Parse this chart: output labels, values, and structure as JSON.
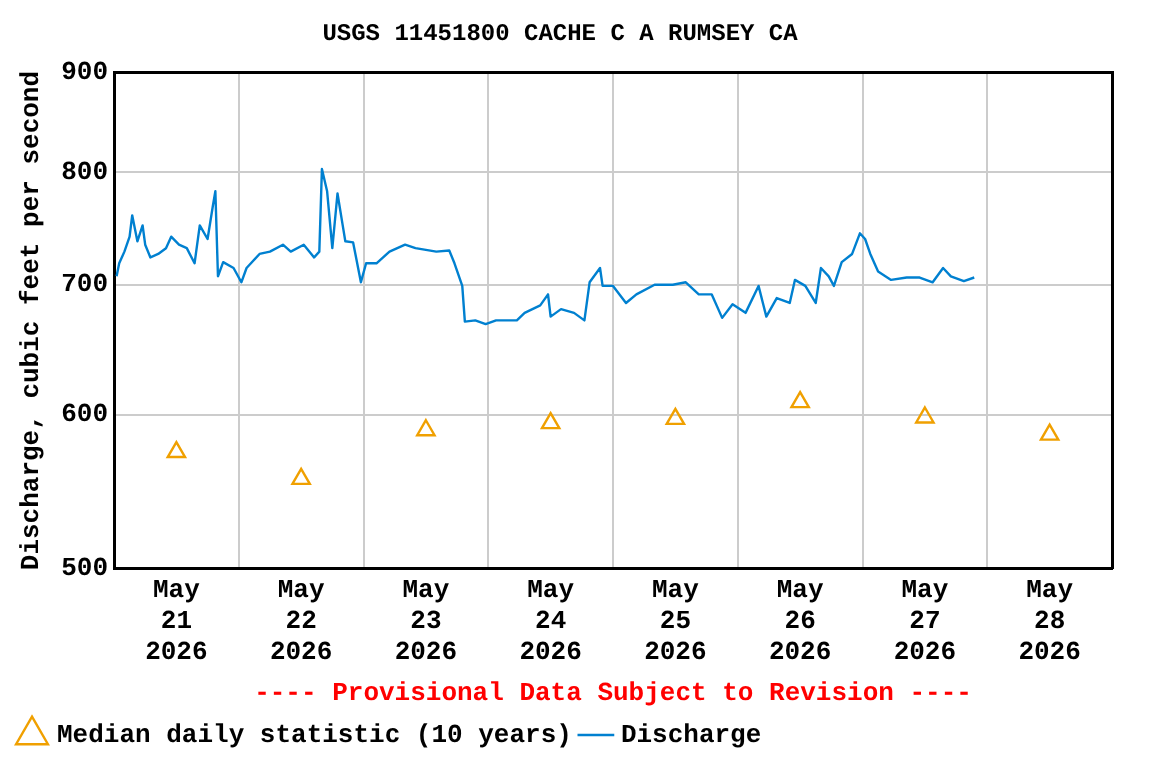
{
  "chart_data": {
    "type": "line",
    "title": "USGS 11451800 CACHE C A RUMSEY CA",
    "ylabel": "Discharge, cubic feet per second",
    "annotations": [
      "---- Provisional Data Subject to Revision ----"
    ],
    "log": "y",
    "grid": true,
    "legend": "bottom",
    "ylim": [
      500,
      900
    ],
    "yticks": [
      500,
      600,
      700,
      800,
      900
    ],
    "xlim": [
      "2026-05-21T00:00",
      "2026-05-29T00:00"
    ],
    "xticks": [
      {
        "value": "2026-05-21T00:00",
        "label": null
      },
      {
        "value": "2026-05-21T12:00",
        "label": "May\n21\n2026"
      },
      {
        "value": "2026-05-22T00:00",
        "label": null
      },
      {
        "value": "2026-05-22T12:00",
        "label": "May\n22\n2026"
      },
      {
        "value": "2026-05-23T00:00",
        "label": null
      },
      {
        "value": "2026-05-23T12:00",
        "label": "May\n23\n2026"
      },
      {
        "value": "2026-05-24T00:00",
        "label": null
      },
      {
        "value": "2026-05-24T12:00",
        "label": "May\n24\n2026"
      },
      {
        "value": "2026-05-25T00:00",
        "label": null
      },
      {
        "value": "2026-05-25T12:00",
        "label": "May\n25\n2026"
      },
      {
        "value": "2026-05-26T00:00",
        "label": null
      },
      {
        "value": "2026-05-26T12:00",
        "label": "May\n26\n2026"
      },
      {
        "value": "2026-05-27T00:00",
        "label": null
      },
      {
        "value": "2026-05-27T12:00",
        "label": "May\n27\n2026"
      },
      {
        "value": "2026-05-28T00:00",
        "label": null
      },
      {
        "value": "2026-05-28T12:00",
        "label": "May\n28\n2026"
      },
      {
        "value": "2026-05-29T00:00",
        "label": null
      }
    ],
    "series": [
      {
        "name": "Median daily statistic (10 years)",
        "type": "scatter",
        "marker": "triangle",
        "color": "#f0a000",
        "x": [
          "2026-05-21T12:00",
          "2026-05-22T12:00",
          "2026-05-23T12:00",
          "2026-05-24T12:00",
          "2026-05-25T12:00",
          "2026-05-26T12:00",
          "2026-05-27T12:00",
          "2026-05-28T12:00"
        ],
        "values": [
          574,
          556,
          589,
          594,
          597,
          609,
          598,
          586
        ]
      },
      {
        "name": "Discharge",
        "type": "line",
        "marker": "none",
        "color": "#0080d0",
        "x": [
          "2026-05-21T00:30",
          "2026-05-21T01:00",
          "2026-05-21T02:00",
          "2026-05-21T03:00",
          "2026-05-21T03:30",
          "2026-05-21T04:30",
          "2026-05-21T05:30",
          "2026-05-21T06:00",
          "2026-05-21T07:00",
          "2026-05-21T08:30",
          "2026-05-21T10:00",
          "2026-05-21T11:00",
          "2026-05-21T12:30",
          "2026-05-21T14:00",
          "2026-05-21T15:30",
          "2026-05-21T16:30",
          "2026-05-21T18:00",
          "2026-05-21T19:00",
          "2026-05-21T19:30",
          "2026-05-21T20:00",
          "2026-05-21T21:00",
          "2026-05-21T23:00",
          "2026-05-22T00:30",
          "2026-05-22T01:30",
          "2026-05-22T04:00",
          "2026-05-22T06:00",
          "2026-05-22T08:30",
          "2026-05-22T10:00",
          "2026-05-22T12:30",
          "2026-05-22T14:30",
          "2026-05-22T15:30",
          "2026-05-22T16:00",
          "2026-05-22T17:00",
          "2026-05-22T18:00",
          "2026-05-22T19:00",
          "2026-05-22T20:00",
          "2026-05-22T20:30",
          "2026-05-22T22:00",
          "2026-05-22T23:30",
          "2026-05-23T00:30",
          "2026-05-23T02:30",
          "2026-05-23T05:00",
          "2026-05-23T08:00",
          "2026-05-23T10:00",
          "2026-05-23T14:00",
          "2026-05-23T16:30",
          "2026-05-23T17:30",
          "2026-05-23T19:00",
          "2026-05-23T19:30",
          "2026-05-23T21:30",
          "2026-05-23T23:30",
          "2026-05-24T01:30",
          "2026-05-24T05:30",
          "2026-05-24T07:00",
          "2026-05-24T10:00",
          "2026-05-24T11:30",
          "2026-05-24T12:00",
          "2026-05-24T14:00",
          "2026-05-24T16:30",
          "2026-05-24T18:30",
          "2026-05-24T19:30",
          "2026-05-24T21:30",
          "2026-05-24T22:00",
          "2026-05-25T00:00",
          "2026-05-25T02:30",
          "2026-05-25T04:30",
          "2026-05-25T08:00",
          "2026-05-25T11:30",
          "2026-05-25T14:00",
          "2026-05-25T16:30",
          "2026-05-25T19:00",
          "2026-05-25T21:00",
          "2026-05-25T23:00",
          "2026-05-26T01:30",
          "2026-05-26T04:00",
          "2026-05-26T05:30",
          "2026-05-26T07:30",
          "2026-05-26T10:00",
          "2026-05-26T11:00",
          "2026-05-26T13:00",
          "2026-05-26T15:00",
          "2026-05-26T16:00",
          "2026-05-26T17:30",
          "2026-05-26T18:30",
          "2026-05-26T20:00",
          "2026-05-26T22:00",
          "2026-05-26T23:30",
          "2026-05-27T00:30",
          "2026-05-27T01:30",
          "2026-05-27T03:00",
          "2026-05-27T05:30",
          "2026-05-27T08:30",
          "2026-05-27T11:00",
          "2026-05-27T13:30",
          "2026-05-27T15:30",
          "2026-05-27T17:00",
          "2026-05-27T19:30",
          "2026-05-27T21:30"
        ],
        "values": [
          707,
          718,
          728,
          741,
          760,
          737,
          751,
          734,
          723,
          726,
          731,
          741,
          734,
          731,
          718,
          751,
          739,
          768,
          782,
          707,
          719,
          714,
          702,
          714,
          726,
          728,
          734,
          728,
          734,
          723,
          728,
          803,
          782,
          731,
          780,
          751,
          737,
          736,
          702,
          718,
          718,
          728,
          734,
          731,
          728,
          729,
          718,
          699,
          670,
          671,
          668,
          671,
          671,
          677,
          683,
          692,
          674,
          680,
          677,
          671,
          702,
          714,
          699,
          699,
          685,
          692,
          700,
          700,
          702,
          692,
          692,
          673,
          684,
          677,
          699,
          674,
          689,
          685,
          704,
          699,
          685,
          714,
          707,
          699,
          719,
          726,
          744,
          739,
          726,
          711,
          704,
          706,
          706,
          702,
          714,
          707,
          703,
          706
        ]
      }
    ]
  }
}
